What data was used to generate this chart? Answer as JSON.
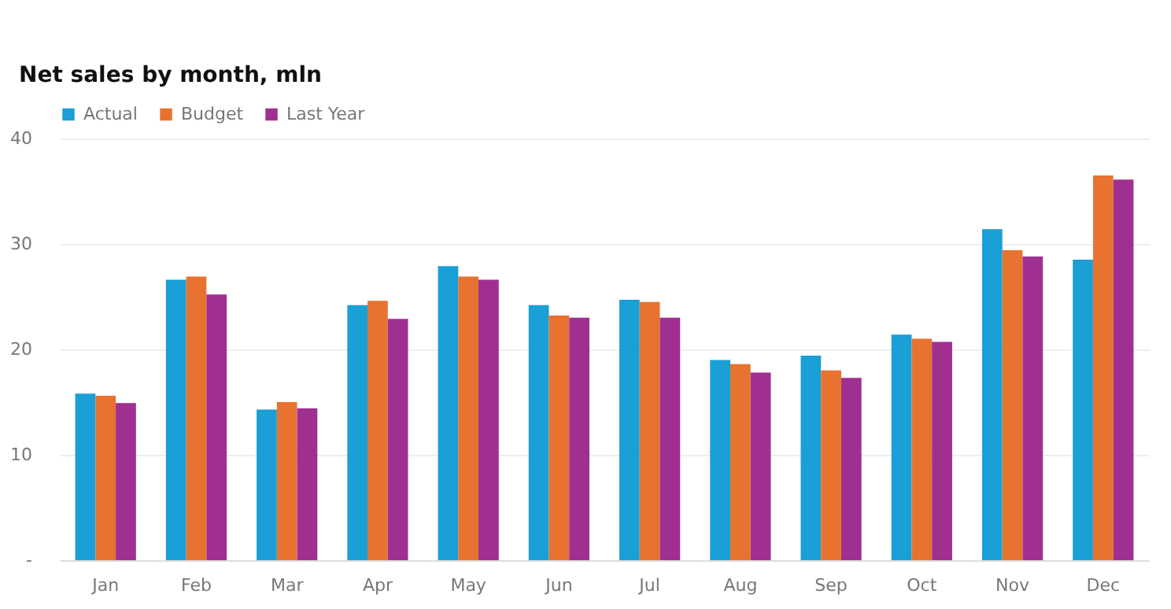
{
  "chart_data": {
    "type": "bar",
    "title": "Net sales by month, mln",
    "categories": [
      "Jan",
      "Feb",
      "Mar",
      "Apr",
      "May",
      "Jun",
      "Jul",
      "Aug",
      "Sep",
      "Oct",
      "Nov",
      "Dec"
    ],
    "series": [
      {
        "name": "Actual",
        "color": "#1a9fd6",
        "values": [
          15.8,
          26.6,
          14.3,
          24.2,
          27.9,
          24.2,
          24.7,
          19.0,
          19.4,
          21.4,
          31.4,
          28.5
        ]
      },
      {
        "name": "Budget",
        "color": "#e87330",
        "values": [
          15.6,
          26.9,
          15.0,
          24.6,
          26.9,
          23.2,
          24.5,
          18.6,
          18.0,
          21.0,
          29.4,
          36.5
        ]
      },
      {
        "name": "Last Year",
        "color": "#a0308f",
        "values": [
          14.9,
          25.2,
          14.4,
          22.9,
          26.6,
          23.0,
          23.0,
          17.8,
          17.3,
          20.7,
          28.8,
          36.1
        ]
      }
    ],
    "ylim": [
      0,
      40
    ],
    "yticks": [
      {
        "value": 0,
        "label": "-"
      },
      10,
      20,
      30,
      40
    ],
    "grid": "y",
    "legend": "top left"
  }
}
